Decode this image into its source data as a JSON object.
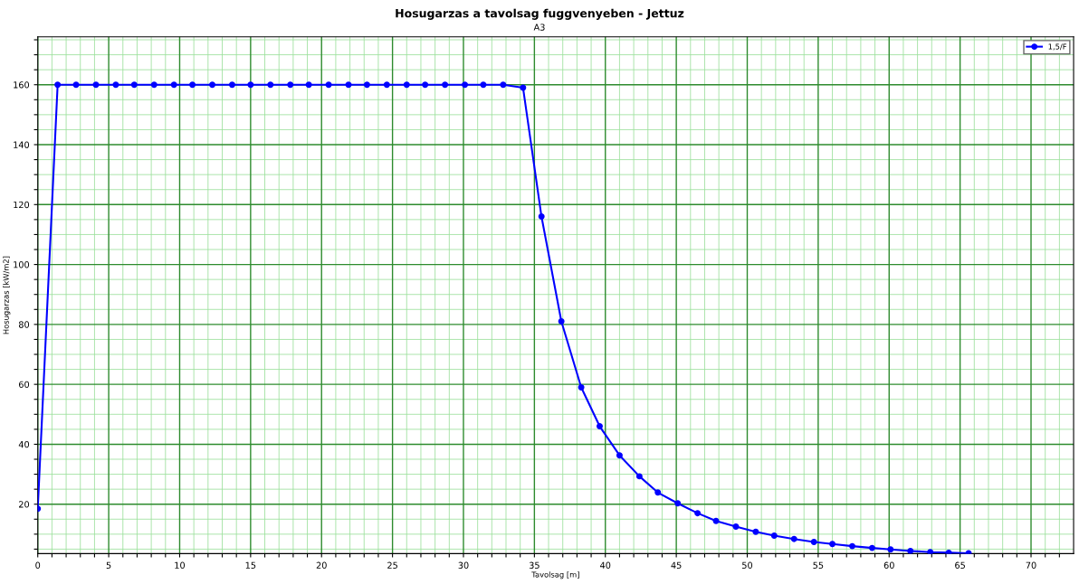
{
  "chart_data": {
    "type": "line",
    "title": "Hosugarzas a tavolsag fuggvenyeben - Jettuz",
    "subtitle": "A3",
    "xlabel": "Tavolsag [m]",
    "ylabel": "Hosugarzas [kW/m2]",
    "x": [
      0,
      1.4,
      2.7,
      4.1,
      5.5,
      6.8,
      8.2,
      9.6,
      10.9,
      12.3,
      13.7,
      15.0,
      16.4,
      17.8,
      19.1,
      20.5,
      21.9,
      23.2,
      24.6,
      26.0,
      27.3,
      28.7,
      30.1,
      31.4,
      32.8,
      34.2,
      35.5,
      36.9,
      38.3,
      39.6,
      41.0,
      42.4,
      43.7,
      45.1,
      46.5,
      47.8,
      49.2,
      50.6,
      51.9,
      53.3,
      54.7,
      56.0,
      57.4,
      58.8,
      60.1,
      61.5,
      62.9,
      64.2,
      65.6
    ],
    "series": [
      {
        "name": "1,5/F",
        "color": "#0000ff",
        "values": [
          18.5,
          160,
          160,
          160,
          160,
          160,
          160,
          160,
          160,
          160,
          160,
          160,
          160,
          160,
          160,
          160,
          160,
          160,
          160,
          160,
          160,
          160,
          160,
          160,
          160,
          159,
          116,
          81,
          59,
          46,
          36.3,
          29.3,
          23.9,
          20.3,
          17.0,
          14.4,
          12.5,
          10.8,
          9.5,
          8.4,
          7.4,
          6.7,
          6.0,
          5.4,
          4.9,
          4.4,
          4.0,
          3.8,
          3.6
        ]
      }
    ],
    "xlim": [
      0,
      73
    ],
    "ylim": [
      3.5,
      176
    ],
    "xticks": [
      0,
      {
        "value": 1,
        "label": null
      },
      {
        "value": 2,
        "label": null
      },
      {
        "value": 3,
        "label": null
      },
      {
        "value": 4,
        "label": null
      },
      5,
      {
        "value": 6,
        "label": null
      },
      {
        "value": 7,
        "label": null
      },
      {
        "value": 8,
        "label": null
      },
      {
        "value": 9,
        "label": null
      },
      10,
      {
        "value": 11,
        "label": null
      },
      {
        "value": 12,
        "label": null
      },
      {
        "value": 13,
        "label": null
      },
      {
        "value": 14,
        "label": null
      },
      15,
      {
        "value": 16,
        "label": null
      },
      {
        "value": 17,
        "label": null
      },
      {
        "value": 18,
        "label": null
      },
      {
        "value": 19,
        "label": null
      },
      20,
      {
        "value": 21,
        "label": null
      },
      {
        "value": 22,
        "label": null
      },
      {
        "value": 23,
        "label": null
      },
      {
        "value": 24,
        "label": null
      },
      25,
      {
        "value": 26,
        "label": null
      },
      {
        "value": 27,
        "label": null
      },
      {
        "value": 28,
        "label": null
      },
      {
        "value": 29,
        "label": null
      },
      30,
      {
        "value": 31,
        "label": null
      },
      {
        "value": 32,
        "label": null
      },
      {
        "value": 33,
        "label": null
      },
      {
        "value": 34,
        "label": null
      },
      35,
      {
        "value": 36,
        "label": null
      },
      {
        "value": 37,
        "label": null
      },
      {
        "value": 38,
        "label": null
      },
      {
        "value": 39,
        "label": null
      },
      40,
      {
        "value": 41,
        "label": null
      },
      {
        "value": 42,
        "label": null
      },
      {
        "value": 43,
        "label": null
      },
      {
        "value": 44,
        "label": null
      },
      45,
      {
        "value": 46,
        "label": null
      },
      {
        "value": 47,
        "label": null
      },
      {
        "value": 48,
        "label": null
      },
      {
        "value": 49,
        "label": null
      },
      50,
      {
        "value": 51,
        "label": null
      },
      {
        "value": 52,
        "label": null
      },
      {
        "value": 53,
        "label": null
      },
      {
        "value": 54,
        "label": null
      },
      55,
      {
        "value": 56,
        "label": null
      },
      {
        "value": 57,
        "label": null
      },
      {
        "value": 58,
        "label": null
      },
      {
        "value": 59,
        "label": null
      },
      60,
      {
        "value": 61,
        "label": null
      },
      {
        "value": 62,
        "label": null
      },
      {
        "value": 63,
        "label": null
      },
      {
        "value": 64,
        "label": null
      },
      65,
      {
        "value": 66,
        "label": null
      },
      {
        "value": 67,
        "label": null
      },
      {
        "value": 68,
        "label": null
      },
      {
        "value": 69,
        "label": null
      },
      70,
      {
        "value": 71,
        "label": null
      },
      {
        "value": 72,
        "label": null
      }
    ],
    "yticks": [
      {
        "value": 5,
        "label": null
      },
      {
        "value": 10,
        "label": null
      },
      {
        "value": 15,
        "label": null
      },
      20,
      {
        "value": 25,
        "label": null
      },
      {
        "value": 30,
        "label": null
      },
      {
        "value": 35,
        "label": null
      },
      40,
      {
        "value": 45,
        "label": null
      },
      {
        "value": 50,
        "label": null
      },
      {
        "value": 55,
        "label": null
      },
      60,
      {
        "value": 65,
        "label": null
      },
      {
        "value": 70,
        "label": null
      },
      {
        "value": 75,
        "label": null
      },
      80,
      {
        "value": 85,
        "label": null
      },
      {
        "value": 90,
        "label": null
      },
      {
        "value": 95,
        "label": null
      },
      100,
      {
        "value": 105,
        "label": null
      },
      {
        "value": 110,
        "label": null
      },
      {
        "value": 115,
        "label": null
      },
      120,
      {
        "value": 125,
        "label": null
      },
      {
        "value": 130,
        "label": null
      },
      {
        "value": 135,
        "label": null
      },
      140,
      {
        "value": 145,
        "label": null
      },
      {
        "value": 150,
        "label": null
      },
      {
        "value": 155,
        "label": null
      },
      160,
      {
        "value": 165,
        "label": null
      },
      {
        "value": 170,
        "label": null
      },
      {
        "value": 175,
        "label": null
      }
    ],
    "grid": true,
    "legend": "top right",
    "marker": "circle",
    "line_style": "solid"
  }
}
